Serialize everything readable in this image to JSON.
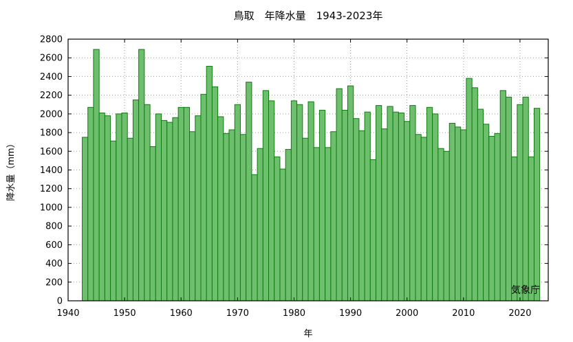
{
  "chart_data": {
    "type": "bar",
    "title": "鳥取　年降水量　1943-2023年",
    "xlabel": "年",
    "ylabel": "降水量（mm）",
    "credit": "気象庁",
    "xlim": [
      1940,
      2025
    ],
    "ylim": [
      0,
      2800
    ],
    "xticks": [
      1940,
      1950,
      1960,
      1970,
      1980,
      1990,
      2000,
      2010,
      2020
    ],
    "yticks": [
      0,
      200,
      400,
      600,
      800,
      1000,
      1200,
      1400,
      1600,
      1800,
      2000,
      2200,
      2400,
      2600,
      2800
    ],
    "grid": true,
    "colors": {
      "bar_fill": "#6dbf6d",
      "bar_edge": "#117a11"
    },
    "x": [
      1943,
      1944,
      1945,
      1946,
      1947,
      1948,
      1949,
      1950,
      1951,
      1952,
      1953,
      1954,
      1955,
      1956,
      1957,
      1958,
      1959,
      1960,
      1961,
      1962,
      1963,
      1964,
      1965,
      1966,
      1967,
      1968,
      1969,
      1970,
      1971,
      1972,
      1973,
      1974,
      1975,
      1976,
      1977,
      1978,
      1979,
      1980,
      1981,
      1982,
      1983,
      1984,
      1985,
      1986,
      1987,
      1988,
      1989,
      1990,
      1991,
      1992,
      1993,
      1994,
      1995,
      1996,
      1997,
      1998,
      1999,
      2000,
      2001,
      2002,
      2003,
      2004,
      2005,
      2006,
      2007,
      2008,
      2009,
      2010,
      2011,
      2012,
      2013,
      2014,
      2015,
      2016,
      2017,
      2018,
      2019,
      2020,
      2021,
      2022,
      2023
    ],
    "values": [
      1750,
      2070,
      2690,
      2010,
      1980,
      1710,
      2000,
      2010,
      1740,
      2150,
      2690,
      2100,
      1650,
      2000,
      1930,
      1910,
      1960,
      2070,
      2070,
      1810,
      1980,
      2210,
      2510,
      2290,
      1970,
      1790,
      1830,
      2100,
      1780,
      2340,
      1350,
      1630,
      2250,
      2140,
      1540,
      1410,
      1620,
      2140,
      2100,
      1740,
      2130,
      1640,
      2040,
      1640,
      1810,
      2270,
      2040,
      2300,
      1950,
      1820,
      2020,
      1510,
      2090,
      1840,
      2080,
      2020,
      2010,
      1920,
      2090,
      1780,
      1750,
      2070,
      2000,
      1630,
      1600,
      1900,
      1860,
      1830,
      2380,
      2280,
      2050,
      1890,
      1760,
      1790,
      2250,
      2180,
      1540,
      2100,
      2180,
      1540,
      2060
    ]
  }
}
